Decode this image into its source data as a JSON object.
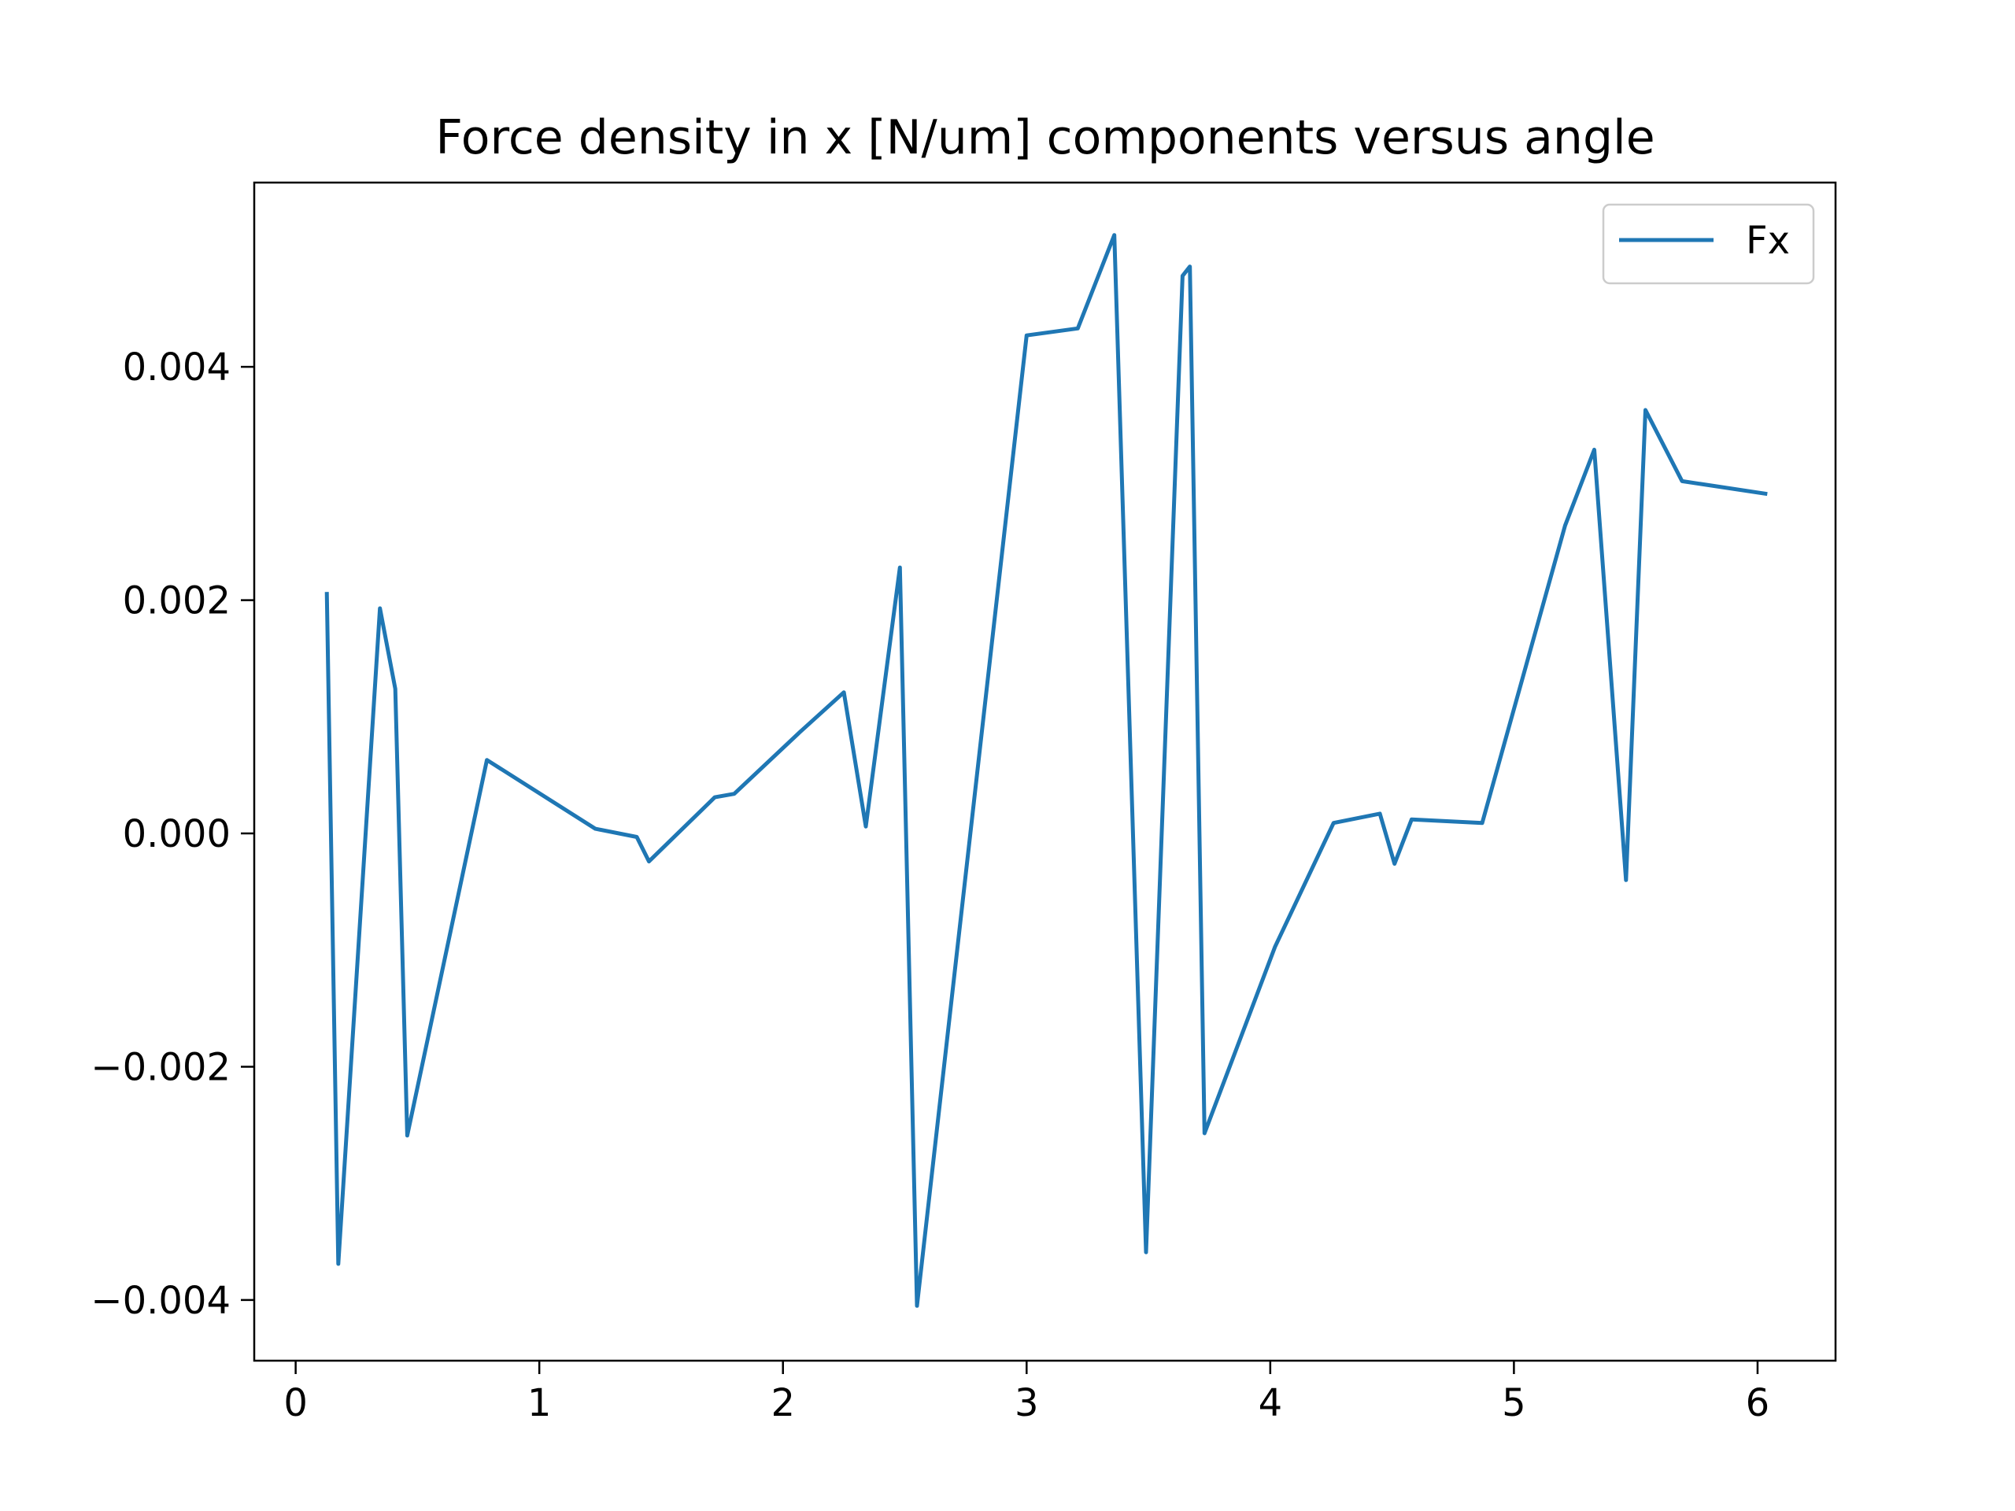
{
  "chart_data": {
    "type": "line",
    "title": "Force density in x [N/um] components versus angle",
    "xlabel": "",
    "ylabel": "",
    "xlim": [
      -0.17,
      6.32
    ],
    "ylim": [
      -0.00452,
      0.00558
    ],
    "xticks": [
      0,
      1,
      2,
      3,
      4,
      5,
      6
    ],
    "xtick_labels": [
      "0",
      "1",
      "2",
      "3",
      "4",
      "5",
      "6"
    ],
    "yticks": [
      -0.004,
      -0.002,
      0.0,
      0.002,
      0.004
    ],
    "ytick_labels": [
      "−0.004",
      "−0.002",
      "0.000",
      "0.002",
      "0.004"
    ],
    "grid": false,
    "legend": {
      "position": "upper right",
      "entries": [
        "Fx"
      ]
    },
    "series": [
      {
        "name": "Fx",
        "color": "#1f77b4",
        "x": [
          0.128,
          0.175,
          0.346,
          0.409,
          0.458,
          0.785,
          1.23,
          1.4,
          1.45,
          1.72,
          1.8,
          2.07,
          2.25,
          2.34,
          2.48,
          2.55,
          3.0,
          3.21,
          3.36,
          3.49,
          3.64,
          3.67,
          3.73,
          4.02,
          4.26,
          4.45,
          4.51,
          4.58,
          4.87,
          5.21,
          5.33,
          5.46,
          5.54,
          5.69,
          6.04
        ],
        "y": [
          0.00207,
          -0.00369,
          0.00193,
          0.00124,
          -0.00259,
          0.00063,
          4e-05,
          -3e-05,
          -0.00024,
          0.00031,
          0.00034,
          0.00087,
          0.00121,
          6e-05,
          0.00228,
          -0.00405,
          0.00427,
          0.00433,
          0.00513,
          -0.00359,
          0.00478,
          0.00486,
          -0.00257,
          -0.00097,
          9e-05,
          0.00017,
          -0.00026,
          0.00012,
          9e-05,
          0.00264,
          0.00329,
          -0.0004,
          0.00363,
          0.00302,
          0.00291
        ]
      }
    ]
  }
}
